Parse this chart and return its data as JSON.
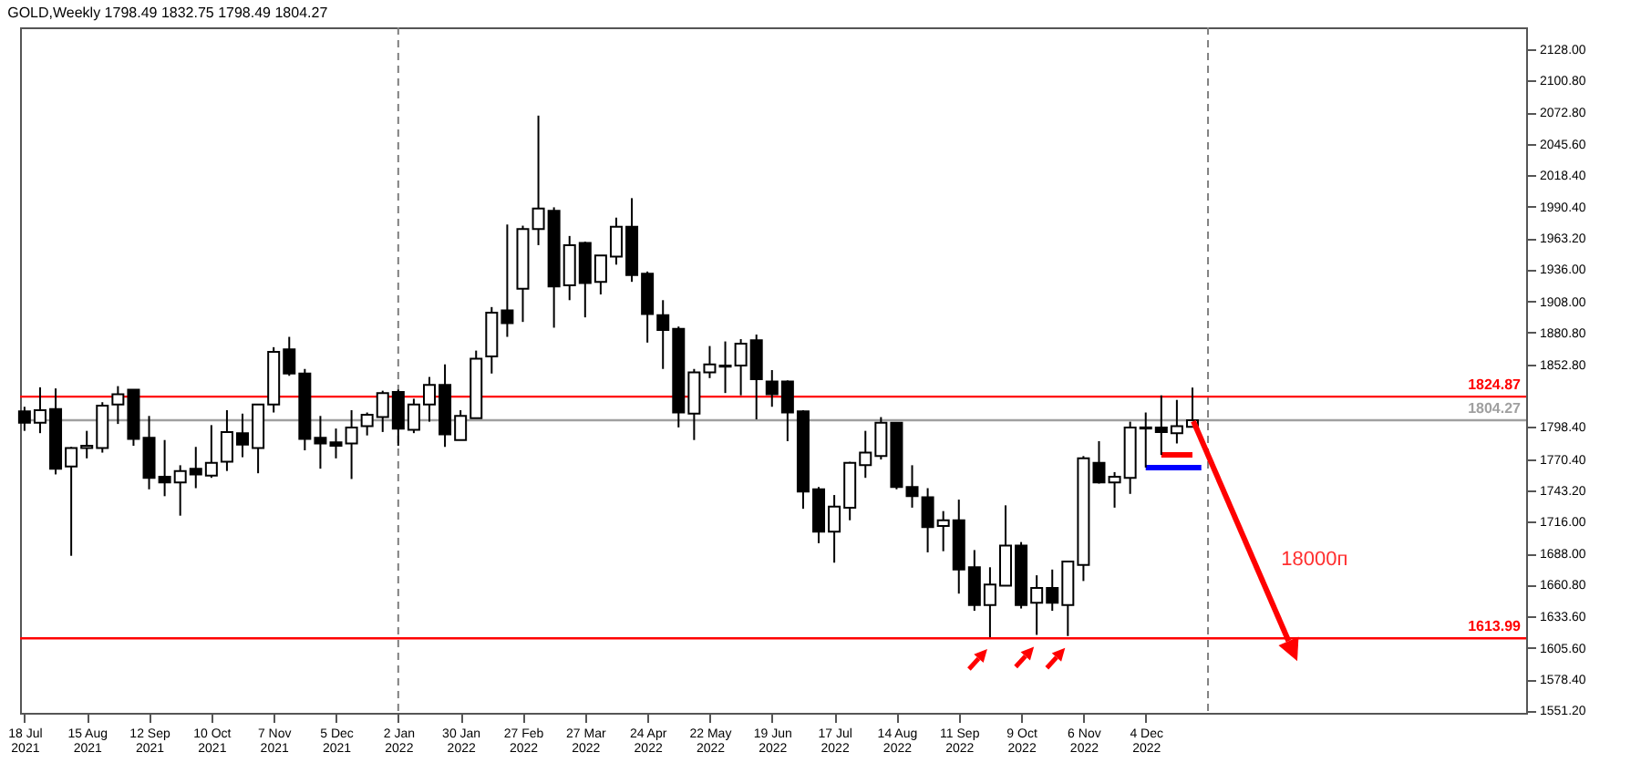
{
  "chart_data": {
    "type": "candlestick",
    "title": "GOLD,Weekly  1798.49 1832.75 1798.49 1804.27",
    "x": [
      "2021-07-18",
      "2021-07-25",
      "2021-08-01",
      "2021-08-08",
      "2021-08-15",
      "2021-08-22",
      "2021-08-29",
      "2021-09-05",
      "2021-09-12",
      "2021-09-19",
      "2021-09-26",
      "2021-10-03",
      "2021-10-10",
      "2021-10-17",
      "2021-10-24",
      "2021-10-31",
      "2021-11-07",
      "2021-11-14",
      "2021-11-21",
      "2021-11-28",
      "2021-12-05",
      "2021-12-12",
      "2021-12-19",
      "2021-12-26",
      "2022-01-02",
      "2022-01-09",
      "2022-01-16",
      "2022-01-23",
      "2022-01-30",
      "2022-02-06",
      "2022-02-13",
      "2022-02-20",
      "2022-02-27",
      "2022-03-06",
      "2022-03-13",
      "2022-03-20",
      "2022-03-27",
      "2022-04-03",
      "2022-04-10",
      "2022-04-17",
      "2022-04-24",
      "2022-05-01",
      "2022-05-08",
      "2022-05-15",
      "2022-05-22",
      "2022-05-29",
      "2022-06-05",
      "2022-06-12",
      "2022-06-19",
      "2022-06-26",
      "2022-07-03",
      "2022-07-10",
      "2022-07-17",
      "2022-07-24",
      "2022-07-31",
      "2022-08-07",
      "2022-08-14",
      "2022-08-21",
      "2022-08-28",
      "2022-09-04",
      "2022-09-11",
      "2022-09-18",
      "2022-09-25",
      "2022-10-02",
      "2022-10-09",
      "2022-10-16",
      "2022-10-23",
      "2022-10-30",
      "2022-11-06",
      "2022-11-13",
      "2022-11-20",
      "2022-11-27",
      "2022-12-04",
      "2022-12-11",
      "2022-12-18",
      "2022-12-25"
    ],
    "ohlc": [
      [
        1812,
        1816,
        1795,
        1802
      ],
      [
        1802,
        1833,
        1793,
        1813
      ],
      [
        1814,
        1832,
        1757,
        1762
      ],
      [
        1764,
        1781,
        1686,
        1780
      ],
      [
        1780,
        1795,
        1771,
        1782
      ],
      [
        1780,
        1820,
        1776,
        1817
      ],
      [
        1818,
        1834,
        1801,
        1827
      ],
      [
        1831,
        1831,
        1782,
        1788
      ],
      [
        1789,
        1808,
        1744,
        1754
      ],
      [
        1755,
        1787,
        1738,
        1750
      ],
      [
        1750,
        1765,
        1721,
        1760
      ],
      [
        1762,
        1781,
        1745,
        1757
      ],
      [
        1756,
        1800,
        1754,
        1767
      ],
      [
        1768,
        1813,
        1760,
        1794
      ],
      [
        1793,
        1810,
        1772,
        1783
      ],
      [
        1780,
        1818,
        1758,
        1818
      ],
      [
        1818,
        1868,
        1811,
        1864
      ],
      [
        1866,
        1877,
        1843,
        1845
      ],
      [
        1845,
        1849,
        1778,
        1788
      ],
      [
        1789,
        1808,
        1762,
        1784
      ],
      [
        1785,
        1797,
        1771,
        1782
      ],
      [
        1784,
        1813,
        1753,
        1798
      ],
      [
        1799,
        1811,
        1791,
        1809
      ],
      [
        1807,
        1830,
        1794,
        1828
      ],
      [
        1829,
        1831,
        1782,
        1797
      ],
      [
        1796,
        1823,
        1793,
        1818
      ],
      [
        1818,
        1842,
        1803,
        1835
      ],
      [
        1835,
        1853,
        1781,
        1792
      ],
      [
        1787,
        1813,
        1787,
        1808
      ],
      [
        1806,
        1865,
        1806,
        1858
      ],
      [
        1860,
        1903,
        1845,
        1898
      ],
      [
        1900,
        1975,
        1877,
        1889
      ],
      [
        1919,
        1974,
        1890,
        1971
      ],
      [
        1971,
        2070,
        1957,
        1989
      ],
      [
        1987,
        1990,
        1885,
        1921
      ],
      [
        1922,
        1965,
        1909,
        1957
      ],
      [
        1959,
        1960,
        1894,
        1924
      ],
      [
        1925,
        1948,
        1914,
        1948
      ],
      [
        1947,
        1981,
        1940,
        1973
      ],
      [
        1973,
        1998,
        1925,
        1931
      ],
      [
        1932,
        1934,
        1872,
        1897
      ],
      [
        1896,
        1909,
        1849,
        1883
      ],
      [
        1884,
        1886,
        1798,
        1811
      ],
      [
        1810,
        1849,
        1787,
        1846
      ],
      [
        1846,
        1869,
        1841,
        1853
      ],
      [
        1852,
        1873,
        1828,
        1851
      ],
      [
        1852,
        1875,
        1826,
        1871
      ],
      [
        1874,
        1879,
        1805,
        1840
      ],
      [
        1838,
        1848,
        1816,
        1827
      ],
      [
        1838,
        1839,
        1786,
        1811
      ],
      [
        1812,
        1813,
        1727,
        1742
      ],
      [
        1744,
        1746,
        1697,
        1707
      ],
      [
        1707,
        1739,
        1680,
        1729
      ],
      [
        1728,
        1768,
        1717,
        1767
      ],
      [
        1765,
        1795,
        1754,
        1776
      ],
      [
        1773,
        1807,
        1770,
        1802
      ],
      [
        1802,
        1802,
        1744,
        1746
      ],
      [
        1746,
        1765,
        1728,
        1738
      ],
      [
        1737,
        1745,
        1689,
        1711
      ],
      [
        1712,
        1725,
        1690,
        1717
      ],
      [
        1717,
        1735,
        1653,
        1674
      ],
      [
        1676,
        1691,
        1638,
        1643
      ],
      [
        1643,
        1676,
        1615,
        1661
      ],
      [
        1660,
        1730,
        1660,
        1695
      ],
      [
        1695,
        1698,
        1640,
        1643
      ],
      [
        1645,
        1669,
        1617,
        1658
      ],
      [
        1658,
        1674,
        1638,
        1645
      ],
      [
        1643,
        1681,
        1616,
        1681
      ],
      [
        1678,
        1773,
        1664,
        1771
      ],
      [
        1767,
        1786,
        1749,
        1750
      ],
      [
        1750,
        1759,
        1728,
        1755
      ],
      [
        1754,
        1803,
        1740,
        1798
      ],
      [
        1798,
        1811,
        1763,
        1797
      ],
      [
        1798,
        1826,
        1774,
        1794
      ],
      [
        1793,
        1822,
        1784,
        1799
      ],
      [
        1798.49,
        1832.75,
        1798.49,
        1804.27
      ]
    ],
    "series": [
      {
        "type": "line",
        "color": "#0000ff",
        "x": [
          "2022-12-04",
          "2022-12-29"
        ],
        "values": [
          1763,
          1763
        ]
      },
      {
        "type": "line",
        "color": "#ff0000",
        "x": [
          "2022-12-11",
          "2022-12-25"
        ],
        "values": [
          1774,
          1774
        ]
      }
    ],
    "xlim": [
      "2021-07-16",
      "2023-05-24"
    ],
    "xticks": [
      {
        "value": "2021-07-18",
        "label": "18 Jul 2021"
      },
      {
        "value": "2021-08-15",
        "label": "15 Aug 2021"
      },
      {
        "value": "2021-09-12",
        "label": "12 Sep 2021"
      },
      {
        "value": "2021-10-10",
        "label": "10 Oct 2021"
      },
      {
        "value": "2021-11-07",
        "label": "7 Nov 2021"
      },
      {
        "value": "2021-12-05",
        "label": "5 Dec 2021"
      },
      {
        "value": "2022-01-02",
        "label": "2 Jan 2022"
      },
      {
        "value": "2022-01-30",
        "label": "30 Jan 2022"
      },
      {
        "value": "2022-02-27",
        "label": "27 Feb 2022"
      },
      {
        "value": "2022-03-27",
        "label": "27 Mar 2022"
      },
      {
        "value": "2022-04-24",
        "label": "24 Apr 2022"
      },
      {
        "value": "2022-05-22",
        "label": "22 May 2022"
      },
      {
        "value": "2022-06-19",
        "label": "19 Jun 2022"
      },
      {
        "value": "2022-07-17",
        "label": "17 Jul 2022"
      },
      {
        "value": "2022-08-14",
        "label": "14 Aug 2022"
      },
      {
        "value": "2022-09-11",
        "label": "11 Sep 2022"
      },
      {
        "value": "2022-10-09",
        "label": "9 Oct 2022"
      },
      {
        "value": "2022-11-06",
        "label": "6 Nov 2022"
      },
      {
        "value": "2022-12-04",
        "label": "4 Dec 2022"
      }
    ],
    "ylim": [
      1549,
      2147
    ],
    "yticks": [
      {
        "value": 2128,
        "label": "2128.00"
      },
      {
        "value": 2100.8,
        "label": "2100.80"
      },
      {
        "value": 2072.8,
        "label": "2072.80"
      },
      {
        "value": 2045.6,
        "label": "2045.60"
      },
      {
        "value": 2018.4,
        "label": "2018.40"
      },
      {
        "value": 1990.4,
        "label": "1990.40"
      },
      {
        "value": 1963.2,
        "label": "1963.20"
      },
      {
        "value": 1936,
        "label": "1936.00"
      },
      {
        "value": 1908,
        "label": "1908.00"
      },
      {
        "value": 1880.8,
        "label": "1880.80"
      },
      {
        "value": 1852.8,
        "label": "1852.80"
      },
      {
        "value": 1798.4,
        "label": "1798.40"
      },
      {
        "value": 1770.4,
        "label": "1770.40"
      },
      {
        "value": 1743.2,
        "label": "1743.20"
      },
      {
        "value": 1716,
        "label": "1716.00"
      },
      {
        "value": 1688,
        "label": "1688.00"
      },
      {
        "value": 1660.8,
        "label": "1660.80"
      },
      {
        "value": 1633.6,
        "label": "1633.60"
      },
      {
        "value": 1605.6,
        "label": "1605.60"
      },
      {
        "value": 1578.4,
        "label": "1578.40"
      },
      {
        "value": 1551.2,
        "label": "1551.20"
      }
    ],
    "ref_lines": [
      {
        "axis": "y",
        "value": 1824.87,
        "label": "1824.87",
        "color": "#ff0000"
      },
      {
        "axis": "y",
        "value": 1804.27,
        "label": "1804.27",
        "color": "#a0a0a0"
      },
      {
        "axis": "y",
        "value": 1613.99,
        "label": "1613.99",
        "color": "#ff0000"
      },
      {
        "axis": "x",
        "value": "2022-01-02",
        "color": "#808080",
        "line_style": "dashed"
      },
      {
        "axis": "x",
        "value": "2023-01-01",
        "color": "#808080",
        "line_style": "dashed"
      }
    ],
    "annotations": [
      "18000п"
    ],
    "grid": false
  }
}
